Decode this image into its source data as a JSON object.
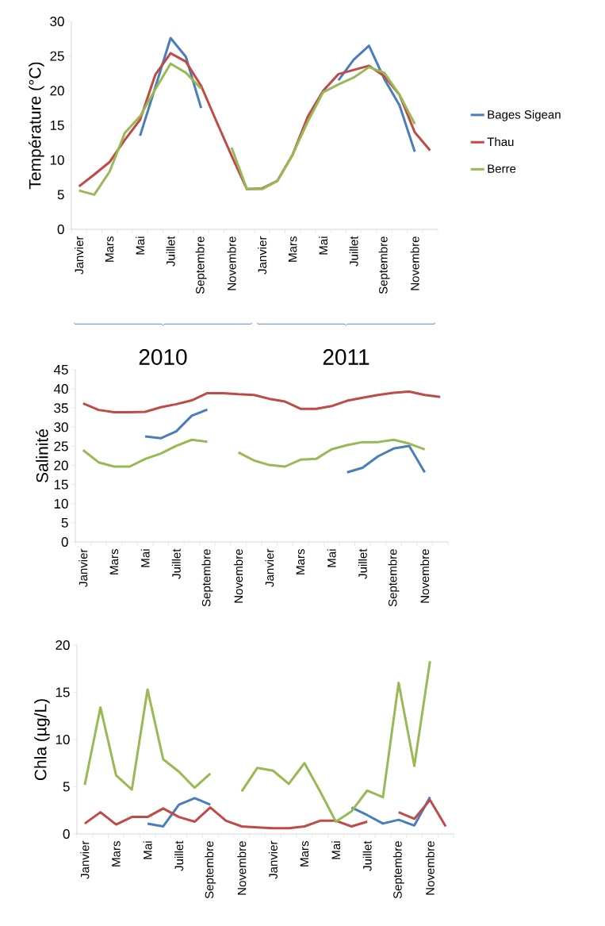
{
  "chart_data": [
    {
      "type": "line",
      "ylabel": "Température (°C)",
      "legend": "right",
      "categories": [
        "Janvier",
        null,
        "Mars",
        null,
        "Mai",
        null,
        "Juillet",
        null,
        "Septembre",
        null,
        "Novembre",
        null,
        "Janvier",
        null,
        "Mars",
        null,
        "Mai",
        null,
        "Juillet",
        null,
        "Septembre",
        null,
        "Novembre",
        null
      ],
      "ylim": [
        0,
        30
      ],
      "yticks": [
        0,
        5,
        10,
        15,
        20,
        25,
        30
      ],
      "annotations": [
        "2010",
        "2011"
      ],
      "series": [
        {
          "name": "Bages Sigean",
          "color": "#4a7ebb",
          "values": [
            null,
            null,
            null,
            null,
            13.5,
            20.5,
            27.6,
            24.9,
            17.5,
            null,
            null,
            null,
            null,
            null,
            null,
            null,
            null,
            21.5,
            24.5,
            26.5,
            21.7,
            17.9,
            11.2,
            null
          ]
        },
        {
          "name": "Thau",
          "color": "#be4b48",
          "values": [
            6.2,
            7.9,
            9.7,
            12.9,
            15.8,
            22.3,
            25.4,
            24.2,
            20.7,
            15.6,
            10.6,
            5.8,
            5.9,
            7.0,
            10.8,
            16.3,
            20.0,
            22.4,
            23.0,
            23.6,
            22.1,
            19.4,
            14.0,
            11.4
          ]
        },
        {
          "name": "Berre",
          "color": "#98b954",
          "values": [
            5.6,
            5.0,
            8.3,
            13.9,
            16.3,
            20.2,
            23.9,
            22.6,
            20.3,
            null,
            11.8,
            5.8,
            5.8,
            7.0,
            10.8,
            15.6,
            19.8,
            20.9,
            21.9,
            23.4,
            22.6,
            19.4,
            15.2,
            null
          ]
        }
      ]
    },
    {
      "type": "line",
      "ylabel": "Salinité",
      "categories": [
        "Janvier",
        null,
        "Mars",
        null,
        "Mai",
        null,
        "Juillet",
        null,
        "Septembre",
        null,
        "Novembre",
        null,
        "Janvier",
        null,
        "Mars",
        null,
        "Mai",
        null,
        "Juillet",
        null,
        "Septembre",
        null,
        "Novembre",
        null
      ],
      "ylim": [
        0,
        45
      ],
      "yticks": [
        0,
        5,
        10,
        15,
        20,
        25,
        30,
        35,
        40,
        45
      ],
      "series": [
        {
          "color": "#4a7ebb",
          "values": [
            null,
            null,
            null,
            null,
            27.6,
            27.1,
            28.9,
            33.0,
            34.6,
            null,
            null,
            null,
            null,
            null,
            null,
            null,
            null,
            18.2,
            19.4,
            22.4,
            24.4,
            25.1,
            18.2,
            null
          ]
        },
        {
          "color": "#be4b48",
          "values": [
            36.2,
            34.5,
            33.9,
            33.9,
            34.0,
            35.2,
            36.0,
            37.0,
            38.9,
            38.9,
            38.6,
            38.4,
            37.4,
            36.7,
            34.8,
            34.8,
            35.5,
            36.9,
            37.7,
            38.4,
            39.0,
            39.3,
            38.4,
            37.9
          ]
        },
        {
          "color": "#98b954",
          "values": [
            24.0,
            20.8,
            19.7,
            19.7,
            21.7,
            23.1,
            25.1,
            26.7,
            26.2,
            null,
            23.4,
            21.3,
            20.1,
            19.7,
            21.5,
            21.7,
            24.2,
            25.3,
            26.1,
            26.1,
            26.7,
            25.7,
            24.2,
            null
          ]
        }
      ]
    },
    {
      "type": "line",
      "ylabel": "Chla (µg/L)",
      "categories": [
        "Janvier",
        null,
        "Mars",
        null,
        "Mai",
        null,
        "Juillet",
        null,
        "Septembre",
        null,
        "Novembre",
        null,
        "Janvier",
        null,
        "Mars",
        null,
        "Mai",
        null,
        "Juillet",
        null,
        "Septembre",
        null,
        "Novembre",
        null
      ],
      "ylim": [
        0,
        20
      ],
      "yticks": [
        0,
        5,
        10,
        15,
        20
      ],
      "series": [
        {
          "color": "#4a7ebb",
          "values": [
            null,
            null,
            null,
            null,
            1.1,
            0.8,
            3.1,
            3.8,
            3.1,
            null,
            null,
            null,
            null,
            null,
            null,
            null,
            null,
            2.8,
            2.0,
            1.1,
            1.5,
            0.9,
            3.9,
            null
          ]
        },
        {
          "color": "#be4b48",
          "values": [
            1.1,
            2.3,
            1.0,
            1.8,
            1.8,
            2.7,
            1.8,
            1.3,
            2.8,
            1.4,
            0.8,
            0.7,
            0.6,
            0.6,
            0.8,
            1.4,
            1.4,
            0.8,
            1.3,
            null,
            2.3,
            1.6,
            3.6,
            0.8
          ]
        },
        {
          "color": "#98b954",
          "values": [
            5.2,
            13.4,
            6.2,
            4.7,
            15.3,
            7.9,
            6.6,
            4.9,
            6.4,
            null,
            4.5,
            7.0,
            6.7,
            5.3,
            7.5,
            4.5,
            1.3,
            2.4,
            4.6,
            3.9,
            16.0,
            7.2,
            18.3,
            null
          ]
        }
      ]
    }
  ]
}
